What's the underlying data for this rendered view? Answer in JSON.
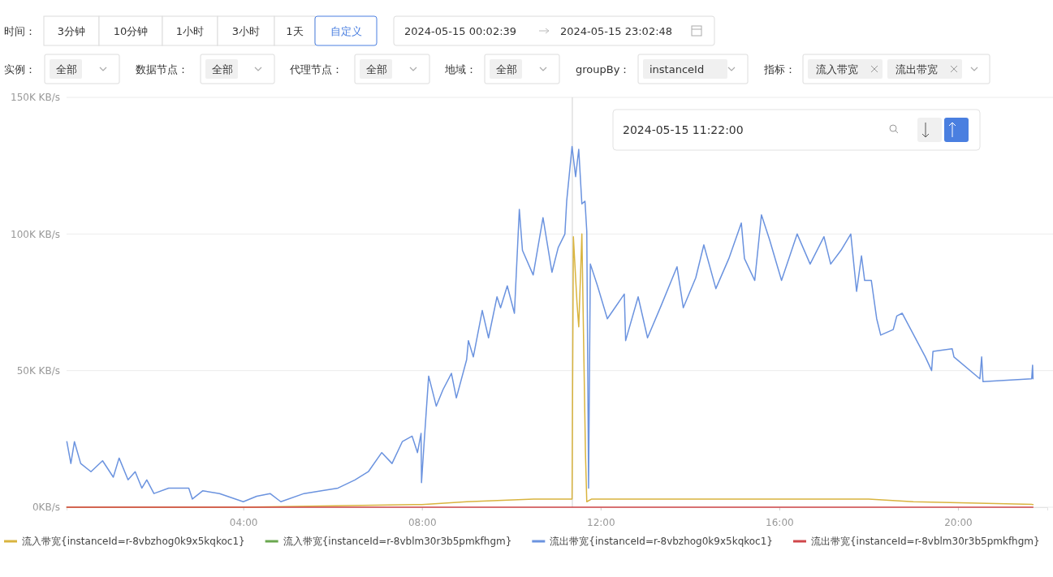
{
  "chart_data": {
    "type": "line",
    "annotations": [
      "时间：",
      "3分钟",
      "10分钟",
      "1小时",
      "3小时",
      "1天",
      "自定义",
      "2024-05-15 00:02:39",
      "2024-05-15 23:02:48",
      "实例：",
      "全部",
      "数据节点：",
      "全部",
      "代理节点：",
      "全部",
      "地域：",
      "全部",
      "groupBy：",
      "instanceId",
      "指标：",
      "流入带宽",
      "流出带宽",
      "2024-05-15 11:22:00"
    ],
    "xlim": [
      0.044,
      22
    ],
    "xticks": [
      {
        "value": 4,
        "label": "04:00"
      },
      {
        "value": 8,
        "label": "08:00"
      },
      {
        "value": 12,
        "label": "12:00"
      },
      {
        "value": 16,
        "label": "16:00"
      },
      {
        "value": 20,
        "label": "20:00"
      }
    ],
    "ylim": [
      0,
      150000
    ],
    "yticks": [
      {
        "value": 0,
        "label": "0KB/s"
      },
      {
        "value": 50000,
        "label": "50K KB/s"
      },
      {
        "value": 100000,
        "label": "100K KB/s"
      },
      {
        "value": 150000,
        "label": "150K KB/s"
      }
    ],
    "grid": "y",
    "legend": "bottom left",
    "marker": "none",
    "line_style": "solid",
    "ref_lines": [
      {
        "axis": "x",
        "value": 11.367,
        "color": "#d0d0d0"
      }
    ],
    "series": [
      {
        "name": "流入带宽{instanceId=r-8vbzhog0k9x5kqkoc1}",
        "color": "#d9b43f",
        "x": [
          0.05,
          4,
          8,
          9,
          10.5,
          11.33,
          11.36,
          11.39,
          11.42,
          11.47,
          11.51,
          11.55,
          11.58,
          11.66,
          11.69,
          11.8,
          14,
          16,
          18,
          19,
          21.68
        ],
        "values": [
          0,
          0,
          1000,
          2000,
          3000,
          3000,
          3000,
          99000,
          90000,
          75000,
          66000,
          85000,
          100000,
          20000,
          2000,
          3000,
          3000,
          3000,
          3000,
          2000,
          1000
        ]
      },
      {
        "name": "流入带宽{instanceId=r-8vblm30r3b5pmkfhgm}",
        "color": "#6aa84f"
      },
      {
        "name": "流出带宽{instanceId=r-8vbzhog0k9x5kqkoc1}",
        "color": "#6b93df",
        "x": [
          0.05,
          0.14,
          0.22,
          0.36,
          0.59,
          0.85,
          1.09,
          1.22,
          1.42,
          1.58,
          1.73,
          1.84,
          2.0,
          2.33,
          2.78,
          2.86,
          3.09,
          3.47,
          4.0,
          4.3,
          4.6,
          4.84,
          5.36,
          5.75,
          6.12,
          6.5,
          6.8,
          7.1,
          7.33,
          7.56,
          7.78,
          7.9,
          7.98,
          7.99,
          8.05,
          8.15,
          8.32,
          8.47,
          8.66,
          8.77,
          9.0,
          9.04,
          9.15,
          9.35,
          9.49,
          9.68,
          9.76,
          9.91,
          10.07,
          10.18,
          10.25,
          10.49,
          10.71,
          10.91,
          11.05,
          11.2,
          11.24,
          11.36,
          11.44,
          11.51,
          11.58,
          11.65,
          11.69,
          11.73,
          11.77,
          11.93,
          12.15,
          12.53,
          12.56,
          12.84,
          13.05,
          13.36,
          13.71,
          13.85,
          14.13,
          14.31,
          14.58,
          14.87,
          15.15,
          15.22,
          15.45,
          15.6,
          15.78,
          16.05,
          16.4,
          16.69,
          17.0,
          17.15,
          17.38,
          17.6,
          17.73,
          17.84,
          17.91,
          18.06,
          18.18,
          18.27,
          18.55,
          18.63,
          18.75,
          19.27,
          19.41,
          19.44,
          19.87,
          19.91,
          20.49,
          20.53,
          20.56,
          21.65,
          21.67,
          21.68
        ],
        "values": [
          24000,
          16000,
          24000,
          16000,
          13000,
          17000,
          11000,
          18000,
          10000,
          13000,
          7000,
          10000,
          5000,
          7000,
          7000,
          3000,
          6000,
          5000,
          2000,
          4000,
          5000,
          2000,
          5000,
          6000,
          7000,
          10000,
          13000,
          20000,
          16000,
          24000,
          26000,
          20000,
          27000,
          9000,
          24000,
          48000,
          37000,
          43000,
          49000,
          40000,
          54000,
          61000,
          55000,
          72000,
          62000,
          77000,
          73000,
          81000,
          71000,
          109000,
          94000,
          85000,
          106000,
          86000,
          95000,
          100000,
          112000,
          132000,
          121000,
          131000,
          111000,
          112000,
          101000,
          7000,
          89000,
          81000,
          69000,
          78000,
          61000,
          77000,
          62000,
          74000,
          88000,
          73000,
          84000,
          96000,
          80000,
          91000,
          104000,
          91000,
          83000,
          107000,
          98000,
          83000,
          100000,
          89000,
          99000,
          89000,
          94000,
          100000,
          79000,
          92000,
          83000,
          83000,
          69000,
          63000,
          65000,
          70000,
          71000,
          55000,
          50000,
          57000,
          58000,
          55000,
          47000,
          55000,
          46000,
          47000,
          52000,
          47000
        ]
      },
      {
        "name": "流出带宽{instanceId=r-8vblm30r3b5pmkfhgm}",
        "color": "#d0474a",
        "x": [
          0.05,
          21.68
        ],
        "values": [
          0,
          0
        ]
      }
    ]
  }
}
